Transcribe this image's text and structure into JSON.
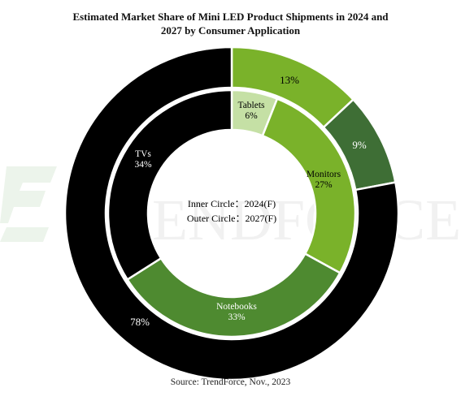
{
  "title_line1": "Estimated Market Share of Mini LED Product Shipments in 2024 and",
  "title_line2": "2027 by Consumer Application",
  "source": "Source: TrendForce, Nov., 2023",
  "watermark": "TRENDFORCE",
  "center_line1": "Inner Circle：2024(F)",
  "center_line2": "Outer Circle：2027(F)",
  "chart_data": {
    "type": "donut",
    "start": "12 o'clock, clockwise",
    "rings": [
      {
        "name": "Inner Circle",
        "year": "2024(F)",
        "slices": [
          {
            "label": "Tablets",
            "value": 6,
            "text": "6%",
            "color": "#c5e0a5"
          },
          {
            "label": "Monitors",
            "value": 27,
            "text": "27%",
            "color": "#7ab22a"
          },
          {
            "label": "Notebooks",
            "value": 33,
            "text": "33%",
            "color": "#4e8a30"
          },
          {
            "label": "TVs",
            "value": 34,
            "text": "34%",
            "color": "#000000"
          }
        ]
      },
      {
        "name": "Outer Circle",
        "year": "2027(F)",
        "slices": [
          {
            "label": "",
            "value": 13,
            "text": "13%",
            "color": "#7ab22a"
          },
          {
            "label": "",
            "value": 9,
            "text": "9%",
            "color": "#3e6e35"
          },
          {
            "label": "",
            "value": 78,
            "text": "78%",
            "color": "#000000"
          }
        ]
      }
    ]
  }
}
